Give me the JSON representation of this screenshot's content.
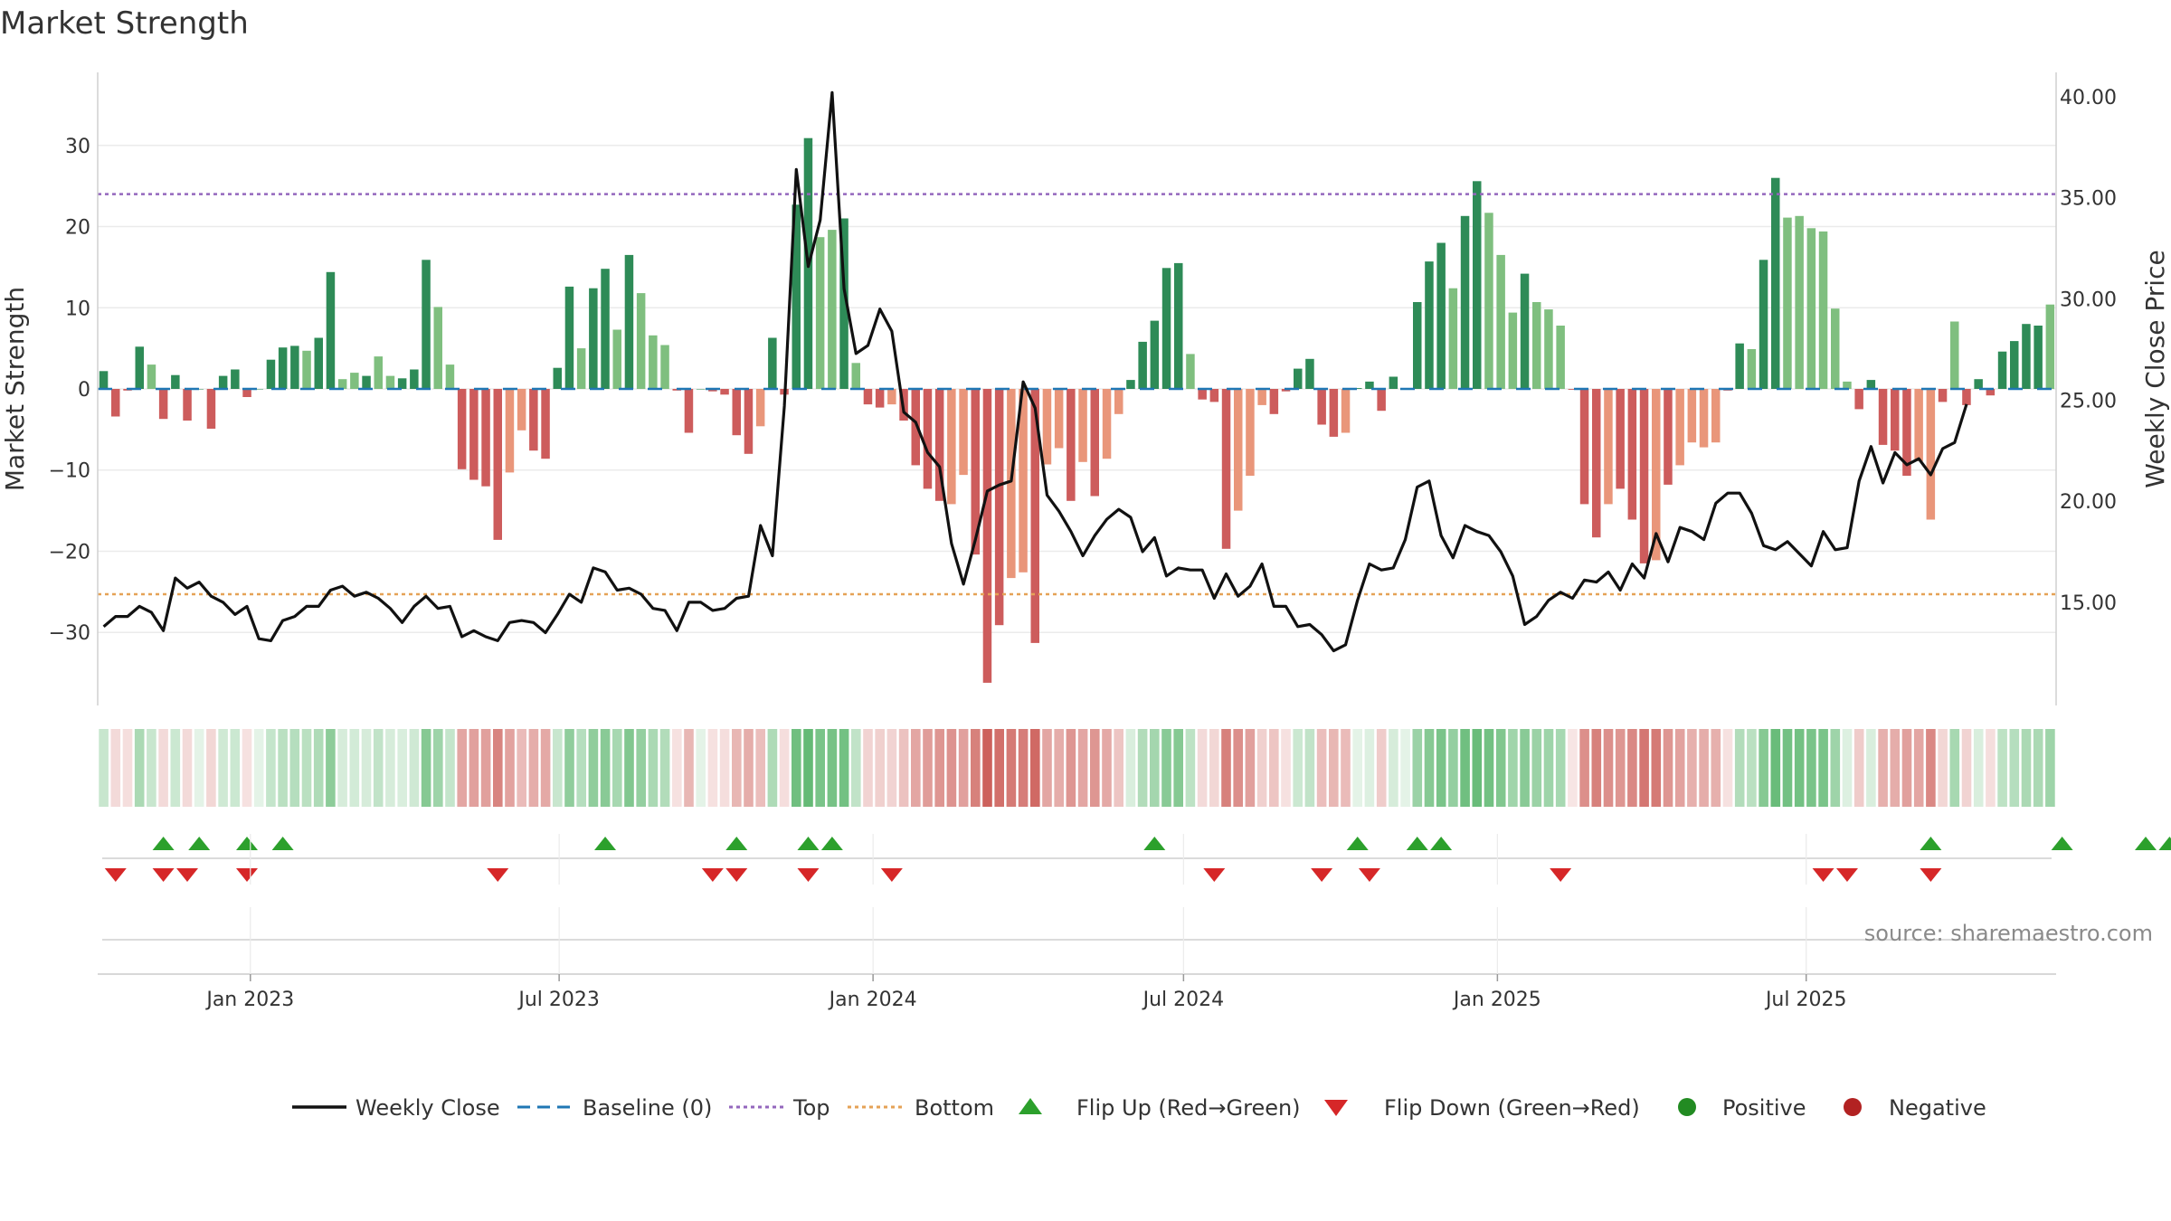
{
  "title": "Market Strength",
  "source": "source: sharemaestro.com",
  "colors": {
    "pos_strong": "#2e8b57",
    "pos_light": "#7fbf7f",
    "neg_strong": "#cd5c5c",
    "neg_light": "#e9967a",
    "close": "#111111",
    "baseline": "#1f77b4",
    "top": "#9467bd",
    "bottom": "#e5a256",
    "flip_up": "#2ca02c",
    "flip_down": "#d62728",
    "positive": "#228b22",
    "negative": "#b22222"
  },
  "chart_data": {
    "type": "bar",
    "x_start": "2022-10-07",
    "x_step_days": 7,
    "x_ticks": [
      "Jan 2023",
      "Jul 2023",
      "Jan 2024",
      "Jul 2024",
      "Jan 2025",
      "Jul 2025"
    ],
    "x_tick_dates": [
      "2023-01-01",
      "2023-07-01",
      "2024-01-01",
      "2024-07-01",
      "2025-01-01",
      "2025-07-01"
    ],
    "ylabel": "Market Strength",
    "y2label": "Weekly Close Price",
    "ylim": [
      -39,
      39
    ],
    "y2lim": [
      9.9,
      41.2
    ],
    "y_ticks": [
      "30",
      "20",
      "10",
      "0",
      "−10",
      "−20",
      "−30"
    ],
    "y_tick_values": [
      30,
      20,
      10,
      0,
      -10,
      -20,
      -30
    ],
    "y2_ticks": [
      "40.00",
      "35.00",
      "30.00",
      "25.00",
      "20.00",
      "15.00"
    ],
    "y2_tick_values": [
      40,
      35,
      30,
      25,
      20,
      15
    ],
    "top_level": 24,
    "bottom_level": -25.3,
    "strength": [
      2.2,
      -3.4,
      -0.2,
      5.2,
      3,
      -3.7,
      1.7,
      -3.9,
      0,
      -4.9,
      1.6,
      2.4,
      -1,
      0,
      3.6,
      5.1,
      5.3,
      4.7,
      6.3,
      14.4,
      1.2,
      2,
      1.6,
      4,
      1.6,
      1.3,
      2.4,
      15.9,
      10.1,
      3,
      -9.9,
      -11.2,
      -12,
      -18.6,
      -10.3,
      -5.1,
      -7.6,
      -8.6,
      2.6,
      12.6,
      5,
      12.4,
      14.8,
      7.3,
      16.5,
      11.8,
      6.6,
      5.4,
      -0.2,
      -5.4,
      0,
      -0.3,
      -0.7,
      -5.7,
      -8,
      -4.6,
      6.3,
      -0.7,
      22.7,
      30.9,
      18.7,
      19.6,
      21,
      3.2,
      -1.9,
      -2.3,
      -1.9,
      -3.9,
      -9.4,
      -12.3,
      -13.8,
      -14.2,
      -10.6,
      -20.4,
      -36.2,
      -29.1,
      -23.3,
      -22.6,
      -31.3,
      -9.3,
      -7.3,
      -13.8,
      -9,
      -13.2,
      -8.6,
      -3.1,
      1.1,
      5.8,
      8.4,
      14.9,
      15.5,
      4.3,
      -1.3,
      -1.6,
      -19.7,
      -15,
      -10.7,
      -2,
      -3.1,
      -0.3,
      2.5,
      3.7,
      -4.4,
      -5.9,
      -5.4,
      0.1,
      0.9,
      -2.7,
      1.5,
      0,
      10.7,
      15.7,
      18,
      12.4,
      21.3,
      25.6,
      21.7,
      16.5,
      9.4,
      14.2,
      10.7,
      9.8,
      7.8,
      -0.1,
      -14.2,
      -18.3,
      -14.2,
      -12.3,
      -16.1,
      -21.5,
      -21.1,
      -11.8,
      -9.4,
      -6.6,
      -7.2,
      -6.6,
      -0.2,
      5.6,
      4.9,
      15.9,
      26,
      21.1,
      21.3,
      19.8,
      19.4,
      9.9,
      0.9,
      -2.5,
      1.1,
      -6.9,
      -7.6,
      -10.7,
      -8.9,
      -16.1,
      -1.6,
      8.3,
      -2,
      1.2,
      -0.8,
      4.6,
      5.9,
      8,
      7.8,
      10.4
    ],
    "bar_shade": [
      "s",
      "s",
      "s",
      "s",
      "l",
      "s",
      "s",
      "s",
      "s",
      "s",
      "s",
      "s",
      "s",
      "s",
      "s",
      "s",
      "s",
      "l",
      "s",
      "s",
      "l",
      "l",
      "s",
      "l",
      "l",
      "s",
      "s",
      "s",
      "l",
      "l",
      "s",
      "s",
      "s",
      "s",
      "l",
      "l",
      "s",
      "s",
      "s",
      "s",
      "l",
      "s",
      "s",
      "l",
      "s",
      "l",
      "l",
      "l",
      "s",
      "s",
      "s",
      "s",
      "s",
      "s",
      "s",
      "l",
      "s",
      "s",
      "s",
      "s",
      "l",
      "l",
      "s",
      "l",
      "s",
      "s",
      "l",
      "s",
      "s",
      "s",
      "s",
      "l",
      "l",
      "s",
      "s",
      "s",
      "l",
      "l",
      "s",
      "l",
      "l",
      "s",
      "l",
      "s",
      "l",
      "l",
      "s",
      "s",
      "s",
      "s",
      "s",
      "l",
      "s",
      "s",
      "s",
      "l",
      "l",
      "l",
      "s",
      "s",
      "s",
      "s",
      "s",
      "s",
      "l",
      "s",
      "s",
      "s",
      "s",
      "s",
      "s",
      "s",
      "s",
      "l",
      "s",
      "s",
      "l",
      "l",
      "l",
      "s",
      "l",
      "l",
      "l",
      "s",
      "s",
      "s",
      "l",
      "s",
      "s",
      "s",
      "l",
      "s",
      "l",
      "l",
      "l",
      "l",
      "s",
      "s",
      "l",
      "s",
      "s",
      "l",
      "l",
      "l",
      "l",
      "l",
      "l",
      "s",
      "s",
      "s",
      "s",
      "s",
      "l",
      "l",
      "s",
      "l",
      "s",
      "s",
      "s",
      "s",
      "s",
      "s",
      "s",
      "l",
      "s",
      "l"
    ],
    "close": [
      13.8,
      14.3,
      14.3,
      14.8,
      14.5,
      13.6,
      16.2,
      15.7,
      16,
      15.3,
      15,
      14.4,
      14.8,
      13.2,
      13.1,
      14.1,
      14.3,
      14.8,
      14.8,
      15.6,
      15.8,
      15.3,
      15.5,
      15.2,
      14.7,
      14,
      14.8,
      15.3,
      14.7,
      14.8,
      13.3,
      13.6,
      13.3,
      13.1,
      14,
      14.1,
      14,
      13.5,
      14.4,
      15.4,
      15,
      16.7,
      16.5,
      15.6,
      15.7,
      15.4,
      14.7,
      14.6,
      13.6,
      15,
      15,
      14.6,
      14.7,
      15.2,
      15.3,
      18.8,
      17.3,
      24.7,
      36.4,
      31.6,
      33.9,
      40.2,
      30.5,
      27.3,
      27.7,
      29.5,
      28.4,
      24.4,
      23.9,
      22.4,
      21.7,
      17.9,
      15.9,
      18.1,
      20.5,
      20.8,
      21,
      25.9,
      24.6,
      20.3,
      19.5,
      18.5,
      17.3,
      18.3,
      19.1,
      19.6,
      19.2,
      17.5,
      18.2,
      16.3,
      16.7,
      16.6,
      16.6,
      15.2,
      16.4,
      15.3,
      15.8,
      16.9,
      14.8,
      14.8,
      13.8,
      13.9,
      13.4,
      12.6,
      12.9,
      15.1,
      16.9,
      16.6,
      16.7,
      18.1,
      20.7,
      21,
      18.3,
      17.2,
      18.8,
      18.5,
      18.3,
      17.5,
      16.3,
      13.9,
      14.3,
      15.1,
      15.5,
      15.2,
      16.1,
      16,
      16.5,
      15.6,
      16.9,
      16.2,
      18.4,
      17,
      18.7,
      18.5,
      18.1,
      19.9,
      20.4,
      20.4,
      19.4,
      17.8,
      17.6,
      18,
      17.4,
      16.8,
      18.5,
      17.6,
      17.7,
      21,
      22.7,
      20.9,
      22.4,
      21.8,
      22.1,
      21.3,
      22.6,
      22.9,
      24.8
    ],
    "flip_up": [
      5,
      8,
      12,
      15,
      42,
      53,
      59,
      61,
      88,
      105,
      110,
      112,
      153,
      164,
      171,
      173
    ],
    "flip_down": [
      1,
      5,
      7,
      12,
      33,
      51,
      53,
      59,
      66,
      93,
      102,
      106,
      122,
      144,
      146,
      153
    ],
    "heat": [
      0.8,
      0.3,
      0.2,
      1.6,
      0.8,
      0.3,
      0.7,
      0.3,
      0,
      0.4,
      0.6,
      0.7,
      0.1,
      0,
      0.9,
      1.2,
      1.3,
      1.2,
      1.5,
      2.5,
      0.4,
      0.5,
      0.4,
      1,
      0.4,
      0.3,
      0.6,
      2.7,
      2,
      0.9,
      1.8,
      2,
      2,
      2.8,
      1.9,
      1.2,
      1.6,
      1.7,
      0.8,
      2.4,
      1.3,
      2.4,
      2.6,
      1.7,
      2.8,
      2.3,
      1.6,
      1.4,
      0.1,
      1.3,
      0,
      0.1,
      0.2,
      1.3,
      1.6,
      1.1,
      1.5,
      0.2,
      3.3,
      3.6,
      3,
      3.1,
      3.2,
      1,
      0.5,
      0.6,
      0.5,
      1,
      1.8,
      2.1,
      2.3,
      2.4,
      2,
      2.9,
      3.8,
      3.4,
      3.1,
      3,
      3.6,
      1.8,
      1.6,
      2.3,
      1.8,
      2.3,
      1.7,
      0.9,
      0.3,
      1.4,
      1.8,
      2.6,
      2.7,
      1.1,
      0.3,
      0.4,
      2.9,
      2.5,
      2,
      0.6,
      0.9,
      0.1,
      0.7,
      1,
      1.1,
      1.3,
      1.2,
      0,
      0.2,
      0.7,
      0.4,
      0,
      2.1,
      2.7,
      3,
      2.3,
      3.3,
      3.5,
      3.2,
      2.8,
      1.9,
      2.6,
      2.1,
      2,
      1.7,
      0,
      2.5,
      2.9,
      2.5,
      2.3,
      2.7,
      3.2,
      3.1,
      2.3,
      1.9,
      1.5,
      1.6,
      1.5,
      0.1,
      1.4,
      1.2,
      2.7,
      3.5,
      3.2,
      3.2,
      3,
      3,
      2,
      0.2,
      0.7,
      0.3,
      1.5,
      1.6,
      2,
      1.8,
      2.7,
      0.4,
      1.7,
      0.5,
      0.3,
      0.2,
      1.1,
      1.3,
      1.6,
      1.6,
      2
    ]
  },
  "legend": {
    "close": "Weekly Close",
    "baseline": "Baseline (0)",
    "top": "Top",
    "bottom": "Bottom",
    "flip_up": "Flip Up (Red→Green)",
    "flip_down": "Flip Down (Green→Red)",
    "positive": "Positive",
    "negative": "Negative"
  }
}
